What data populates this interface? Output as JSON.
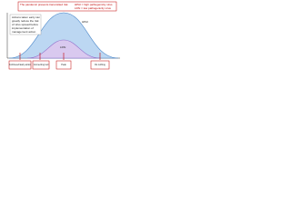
{
  "header": {
    "title": "The pandemic presents transmitted risk",
    "legend": [
      "HPAI = high pathogenicity virus",
      "LPAI = low pathogenicity virus"
    ]
  },
  "note": [
    "Actions taken early can",
    "greatly reduce the risk",
    "of virus spread before",
    "implementation of",
    "management action"
  ],
  "curves": {
    "large": "HPAI",
    "small": "LPAI"
  },
  "bottom": [
    "Full-flexed Early action",
    "Connecting tool",
    "Peak",
    "Do nothing"
  ]
}
